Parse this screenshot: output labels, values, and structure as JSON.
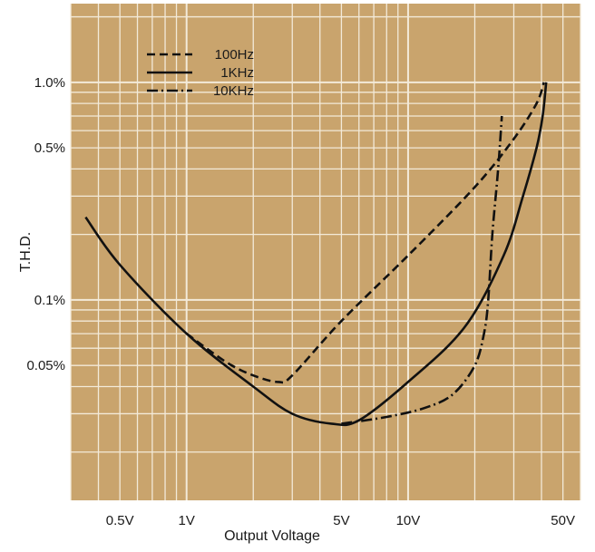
{
  "chart_data": {
    "type": "line",
    "title": "",
    "xlabel": "Output Voltage",
    "ylabel": "T.H.D.",
    "x_scale": "log",
    "y_scale": "log",
    "xlim": [
      0.3,
      60
    ],
    "ylim": [
      0.012,
      2.3
    ],
    "x_ticks": [
      {
        "value": 0.5,
        "label": "0.5V"
      },
      {
        "value": 1,
        "label": "1V"
      },
      {
        "value": 5,
        "label": "5V"
      },
      {
        "value": 10,
        "label": "10V"
      },
      {
        "value": 50,
        "label": "50V"
      }
    ],
    "y_ticks": [
      {
        "value": 1.0,
        "label": "1.0%"
      },
      {
        "value": 0.5,
        "label": "0.5%"
      },
      {
        "value": 0.1,
        "label": "0.1%"
      },
      {
        "value": 0.05,
        "label": "0.05%"
      }
    ],
    "grid": true,
    "legend_position": "top-left",
    "colors": {
      "plot_background": "#c9a46d",
      "grid": "#f3ead9",
      "line": "#111111",
      "text": "#1a1a1a"
    },
    "series": [
      {
        "name": "100Hz",
        "dash": "dashed",
        "points": [
          [
            1.0,
            0.07
          ],
          [
            1.5,
            0.052
          ],
          [
            2.0,
            0.045
          ],
          [
            2.6,
            0.042
          ],
          [
            3.0,
            0.045
          ],
          [
            5.0,
            0.08
          ],
          [
            10.0,
            0.16
          ],
          [
            20.0,
            0.33
          ],
          [
            30.0,
            0.55
          ],
          [
            38.0,
            0.8
          ],
          [
            41.0,
            1.0
          ]
        ]
      },
      {
        "name": "1KHz",
        "dash": "solid",
        "points": [
          [
            0.35,
            0.24
          ],
          [
            0.5,
            0.145
          ],
          [
            1.0,
            0.07
          ],
          [
            2.0,
            0.04
          ],
          [
            3.0,
            0.03
          ],
          [
            4.5,
            0.027
          ],
          [
            6.0,
            0.028
          ],
          [
            10.0,
            0.042
          ],
          [
            18.0,
            0.075
          ],
          [
            27.0,
            0.16
          ],
          [
            33.0,
            0.3
          ],
          [
            38.0,
            0.5
          ],
          [
            40.5,
            0.7
          ],
          [
            42.0,
            1.0
          ]
        ]
      },
      {
        "name": "10KHz",
        "dash": "dashdot",
        "points": [
          [
            5.0,
            0.027
          ],
          [
            8.0,
            0.029
          ],
          [
            12.0,
            0.032
          ],
          [
            16.0,
            0.037
          ],
          [
            20.0,
            0.05
          ],
          [
            22.0,
            0.07
          ],
          [
            23.0,
            0.1
          ],
          [
            24.0,
            0.2
          ],
          [
            25.5,
            0.4
          ],
          [
            26.5,
            0.7
          ]
        ]
      }
    ]
  }
}
